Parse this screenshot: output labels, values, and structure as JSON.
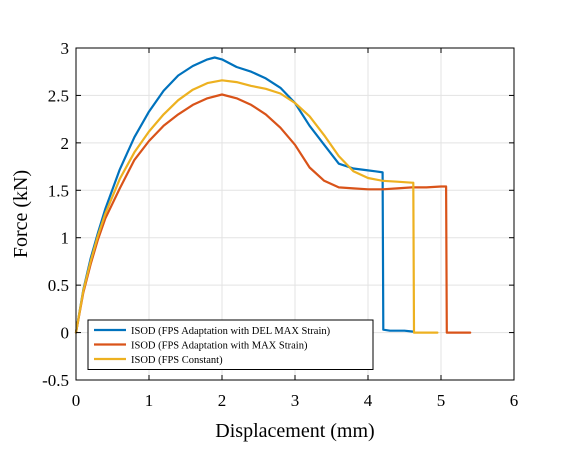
{
  "chart_data": {
    "type": "line",
    "title": "",
    "xlabel": "Displacement (mm)",
    "ylabel": "Force (kN)",
    "xlim": [
      0,
      6
    ],
    "ylim": [
      -0.5,
      3
    ],
    "xticks": [
      0,
      1,
      2,
      3,
      4,
      5,
      6
    ],
    "xtick_labels": [
      "0",
      "1",
      "2",
      "3",
      "4",
      "5",
      "6"
    ],
    "yticks": [
      -0.5,
      0,
      0.5,
      1,
      1.5,
      2,
      2.5,
      3
    ],
    "ytick_labels": [
      "-0.5",
      "0",
      "0.5",
      "1",
      "1.5",
      "2",
      "2.5",
      "3"
    ],
    "grid": true,
    "legend_position": "bottom-left",
    "series": [
      {
        "name": "ISOD (FPS Adaptation with DEL MAX Strain)",
        "color": "#0072BD",
        "x": [
          0,
          0.1,
          0.2,
          0.3,
          0.4,
          0.6,
          0.8,
          1.0,
          1.2,
          1.4,
          1.6,
          1.8,
          1.9,
          2.0,
          2.2,
          2.4,
          2.6,
          2.8,
          3.0,
          3.2,
          3.4,
          3.6,
          3.8,
          4.0,
          4.1,
          4.2,
          4.21,
          4.3,
          4.5,
          4.62
        ],
        "y": [
          0,
          0.45,
          0.78,
          1.05,
          1.3,
          1.72,
          2.06,
          2.33,
          2.55,
          2.71,
          2.81,
          2.88,
          2.9,
          2.88,
          2.8,
          2.75,
          2.68,
          2.58,
          2.42,
          2.18,
          1.98,
          1.78,
          1.73,
          1.71,
          1.7,
          1.69,
          0.03,
          0.02,
          0.02,
          0.01
        ]
      },
      {
        "name": "ISOD (FPS Adaptation with MAX Strain)",
        "color": "#D95319",
        "x": [
          0,
          0.1,
          0.2,
          0.3,
          0.4,
          0.6,
          0.8,
          1.0,
          1.2,
          1.4,
          1.6,
          1.8,
          2.0,
          2.2,
          2.4,
          2.6,
          2.8,
          3.0,
          3.2,
          3.4,
          3.6,
          3.8,
          4.0,
          4.2,
          4.4,
          4.6,
          4.8,
          5.0,
          5.07,
          5.08,
          5.2,
          5.4
        ],
        "y": [
          0,
          0.42,
          0.72,
          0.98,
          1.2,
          1.52,
          1.82,
          2.02,
          2.18,
          2.3,
          2.4,
          2.47,
          2.51,
          2.47,
          2.4,
          2.3,
          2.16,
          1.98,
          1.74,
          1.6,
          1.53,
          1.52,
          1.51,
          1.51,
          1.52,
          1.53,
          1.53,
          1.54,
          1.54,
          0.0,
          0.0,
          0.0
        ]
      },
      {
        "name": "ISOD (FPS Constant)",
        "color": "#EDB120",
        "x": [
          0,
          0.1,
          0.2,
          0.3,
          0.4,
          0.6,
          0.8,
          1.0,
          1.2,
          1.4,
          1.6,
          1.8,
          2.0,
          2.2,
          2.4,
          2.6,
          2.8,
          3.0,
          3.2,
          3.4,
          3.6,
          3.8,
          4.0,
          4.2,
          4.4,
          4.6,
          4.62,
          4.63,
          4.8,
          4.95
        ],
        "y": [
          0,
          0.44,
          0.75,
          1.02,
          1.25,
          1.62,
          1.9,
          2.12,
          2.3,
          2.45,
          2.56,
          2.63,
          2.66,
          2.64,
          2.6,
          2.57,
          2.52,
          2.42,
          2.28,
          2.08,
          1.86,
          1.7,
          1.63,
          1.6,
          1.59,
          1.58,
          1.58,
          0.0,
          0.0,
          0.0
        ]
      }
    ]
  }
}
